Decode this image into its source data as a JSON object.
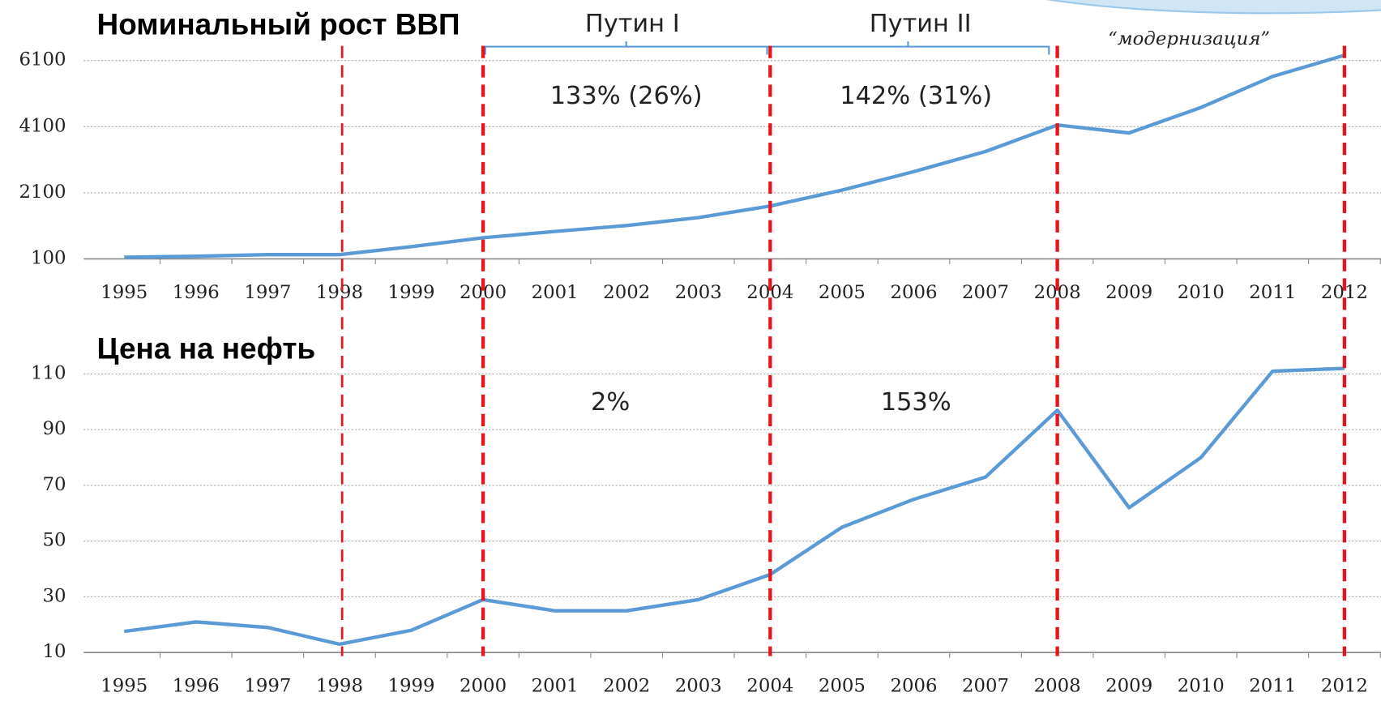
{
  "chart_data": [
    {
      "type": "line",
      "title": "Номинальный рост ВВП",
      "categories": [
        "1995",
        "1996",
        "1997",
        "1998",
        "1999",
        "2000",
        "2001",
        "2002",
        "2003",
        "2004",
        "2005",
        "2006",
        "2007",
        "2008",
        "2009",
        "2010",
        "2011",
        "2012"
      ],
      "values": [
        150,
        180,
        230,
        230,
        470,
        740,
        930,
        1110,
        1350,
        1700,
        2180,
        2740,
        3350,
        4150,
        3910,
        4680,
        5620,
        6260
      ],
      "color": "#5b9bd5",
      "ylim": [
        100,
        6600
      ],
      "yticks": [
        100,
        2100,
        4100,
        6100
      ],
      "grid": true,
      "periods": [
        "Путин I",
        "Путин II",
        "“модернизация”"
      ],
      "annotations": [
        "133% (26%)",
        "142% (31%)"
      ]
    },
    {
      "type": "line",
      "title": "Цена на нефть",
      "categories": [
        "1995",
        "1996",
        "1997",
        "1998",
        "1999",
        "2000",
        "2001",
        "2002",
        "2003",
        "2004",
        "2005",
        "2006",
        "2007",
        "2008",
        "2009",
        "2010",
        "2011",
        "2012"
      ],
      "values": [
        17.6,
        21,
        19,
        13,
        18,
        29,
        25,
        25,
        29,
        38,
        55,
        65,
        73,
        97,
        62,
        80,
        111,
        112
      ],
      "color": "#5b9bd5",
      "ylim": [
        10,
        114
      ],
      "yticks": [
        10,
        30,
        50,
        70,
        90,
        110
      ],
      "grid": true,
      "annotations": [
        "2%",
        "153%"
      ]
    }
  ],
  "period_lines": [
    "1998",
    "2000",
    "2004",
    "2008",
    "2012"
  ]
}
